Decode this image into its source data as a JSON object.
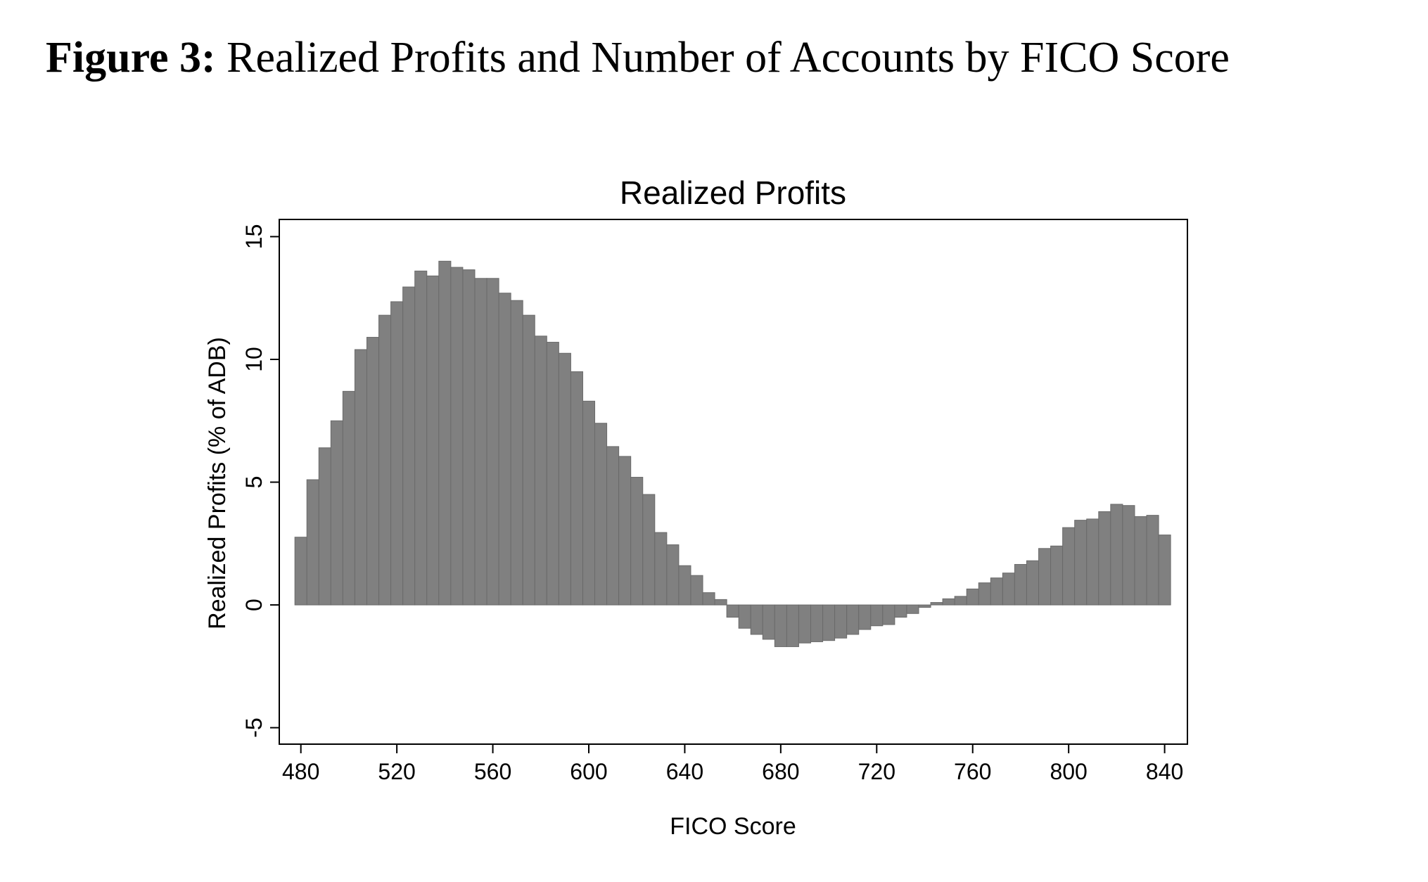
{
  "figure": {
    "label": "Figure 3:",
    "title": "Realized Profits and Number of Accounts by FICO Score"
  },
  "chart_data": {
    "type": "histogram",
    "title": "Realized Profits",
    "x_label": "FICO Score",
    "y_label": "Realized Profits (% of ADB)",
    "bins": [
      477.5,
      482.5,
      487.5,
      492.5,
      497.5,
      502.5,
      507.5,
      512.5,
      517.5,
      522.5,
      527.5,
      532.5,
      537.5,
      542.5,
      547.5,
      552.5,
      557.5,
      562.5,
      567.5,
      572.5,
      577.5,
      582.5,
      587.5,
      592.5,
      597.5,
      602.5,
      607.5,
      612.5,
      617.5,
      622.5,
      627.5,
      632.5,
      637.5,
      642.5,
      647.5,
      652.5,
      657.5,
      662.5,
      667.5,
      672.5,
      677.5,
      682.5,
      687.5,
      692.5,
      697.5,
      702.5,
      707.5,
      712.5,
      717.5,
      722.5,
      727.5,
      732.5,
      737.5,
      742.5,
      747.5,
      752.5,
      757.5,
      762.5,
      767.5,
      772.5,
      777.5,
      782.5,
      787.5,
      792.5,
      797.5,
      802.5,
      807.5,
      812.5,
      817.5,
      822.5,
      827.5,
      832.5,
      837.5,
      842.5
    ],
    "values": [
      2.76,
      5.1,
      6.4,
      7.5,
      8.7,
      10.4,
      10.9,
      11.8,
      12.35,
      12.95,
      13.6,
      13.4,
      14.0,
      13.75,
      13.65,
      13.3,
      13.3,
      12.7,
      12.4,
      11.8,
      10.95,
      10.7,
      10.25,
      9.5,
      8.3,
      7.4,
      6.45,
      6.05,
      5.2,
      4.5,
      2.95,
      2.45,
      1.6,
      1.2,
      0.5,
      0.22,
      -0.5,
      -0.95,
      -1.2,
      -1.4,
      -1.7,
      -1.7,
      -1.55,
      -1.5,
      -1.45,
      -1.35,
      -1.2,
      -1.0,
      -0.85,
      -0.8,
      -0.5,
      -0.35,
      -0.1,
      0.1,
      0.25,
      0.35,
      0.65,
      0.9,
      1.1,
      1.3,
      1.65,
      1.8,
      2.3,
      2.4,
      3.15,
      3.45,
      3.5,
      3.8,
      4.1,
      4.05,
      3.6,
      3.65,
      2.85
    ],
    "color": "#808080",
    "xlim": [
      471,
      849.5
    ],
    "xticks": [
      480,
      520,
      560,
      600,
      640,
      680,
      720,
      760,
      800,
      840
    ],
    "ylim": [
      -5.67,
      15.7
    ],
    "yticks": [
      -5,
      0,
      5,
      10,
      15
    ],
    "grid": false
  }
}
